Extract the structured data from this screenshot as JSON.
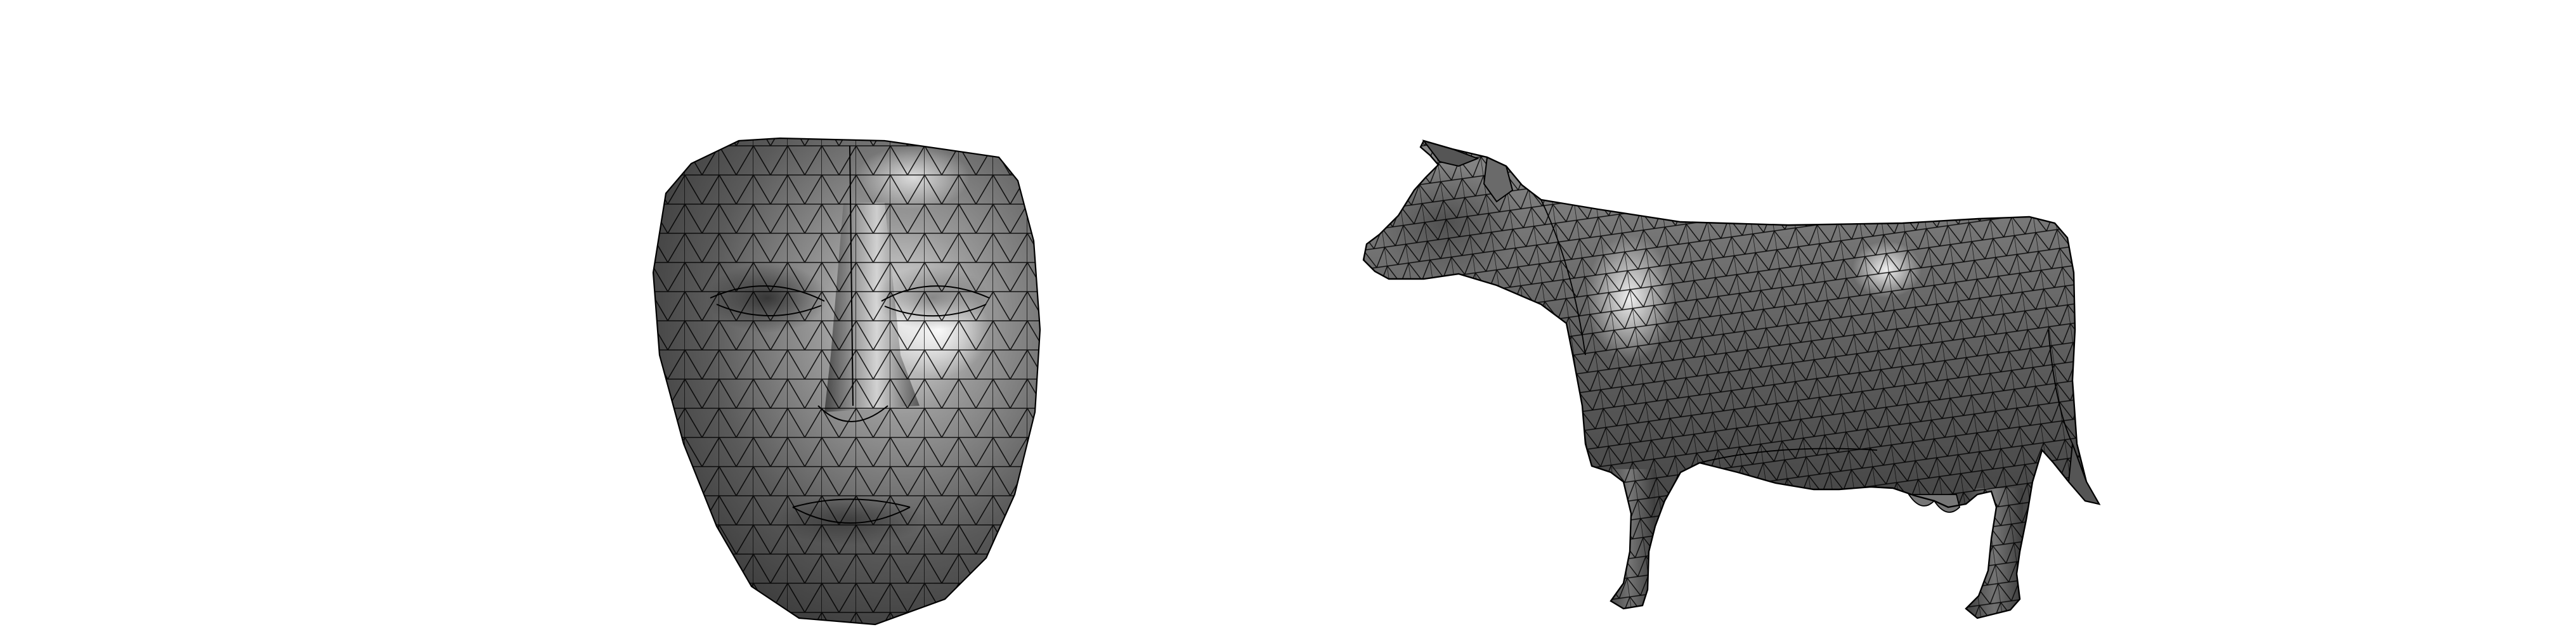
{
  "figure": {
    "background": "#ffffff",
    "objects": [
      {
        "id": "face-mesh",
        "kind": "triangulated-3d-surface",
        "subject": "human face",
        "render_style": "grayscale shaded with black wireframe edges",
        "shade_dark": "#2a2a2a",
        "shade_light": "#f2f2f2",
        "edge_color": "#000000"
      },
      {
        "id": "cow-mesh",
        "kind": "triangulated-3d-surface",
        "subject": "cow",
        "render_style": "grayscale shaded with black wireframe edges",
        "shade_dark": "#2a2a2a",
        "shade_light": "#f2f2f2",
        "edge_color": "#000000"
      }
    ]
  }
}
